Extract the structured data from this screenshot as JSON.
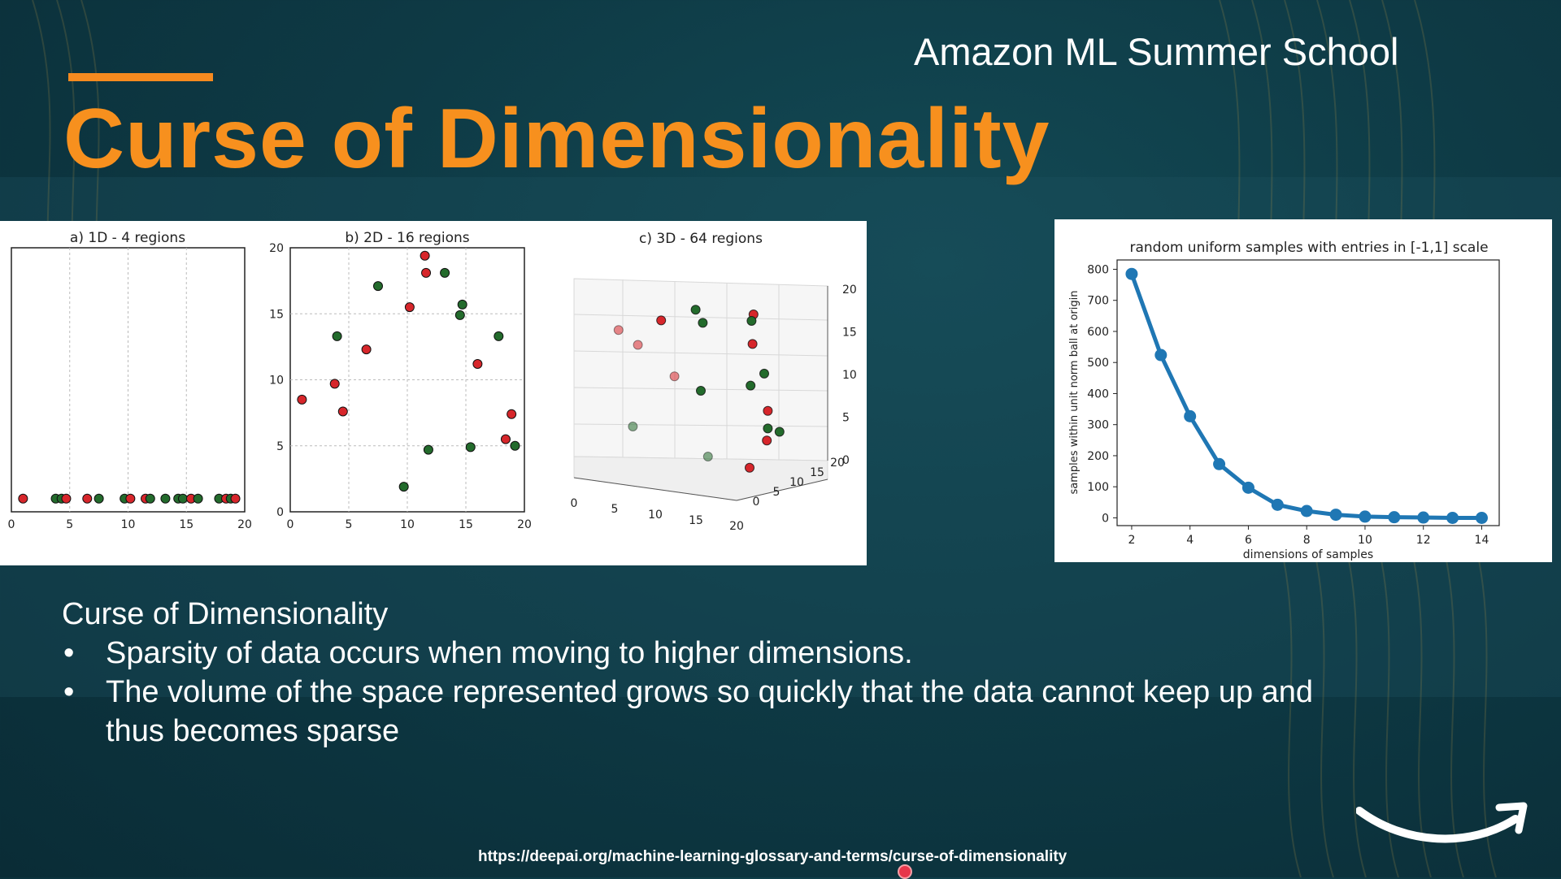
{
  "slide": {
    "brand": "Amazon ML Summer School",
    "title": "Curse of Dimensionality",
    "body_heading": "Curse of Dimensionality",
    "bullets": [
      "Sparsity of data occurs when moving to higher dimensions.",
      "The volume of the space represented grows so quickly that the data cannot keep up and thus becomes sparse"
    ],
    "bullet_symbol": "•",
    "source_url": "https://deepai.org/machine-learning-glossary-and-terms/curse-of-dimensionality",
    "logo": "amazon-smile-icon",
    "colors": {
      "title": "#f7901e",
      "accent": "#f58a1f",
      "red_point": "#d7262b",
      "green_point": "#236b2c",
      "line": "#1f77b4"
    }
  },
  "chart_data": [
    {
      "type": "scatter",
      "title": "a) 1D - 4 regions",
      "xlim": [
        0,
        20
      ],
      "ylim": [
        0,
        20
      ],
      "xticks": [
        0,
        5,
        10,
        15,
        20
      ],
      "grid": true,
      "points": [
        {
          "x": 1,
          "y": 1,
          "color": "red"
        },
        {
          "x": 3.8,
          "y": 1,
          "color": "green"
        },
        {
          "x": 4.3,
          "y": 1,
          "color": "green"
        },
        {
          "x": 4.7,
          "y": 1,
          "color": "red"
        },
        {
          "x": 6.5,
          "y": 1,
          "color": "red"
        },
        {
          "x": 7.5,
          "y": 1,
          "color": "green"
        },
        {
          "x": 9.7,
          "y": 1,
          "color": "green"
        },
        {
          "x": 10.2,
          "y": 1,
          "color": "red"
        },
        {
          "x": 11.5,
          "y": 1,
          "color": "red"
        },
        {
          "x": 11.9,
          "y": 1,
          "color": "green"
        },
        {
          "x": 13.2,
          "y": 1,
          "color": "green"
        },
        {
          "x": 14.3,
          "y": 1,
          "color": "green"
        },
        {
          "x": 14.7,
          "y": 1,
          "color": "green"
        },
        {
          "x": 15.4,
          "y": 1,
          "color": "red"
        },
        {
          "x": 16,
          "y": 1,
          "color": "green"
        },
        {
          "x": 17.8,
          "y": 1,
          "color": "green"
        },
        {
          "x": 18.4,
          "y": 1,
          "color": "red"
        },
        {
          "x": 18.8,
          "y": 1,
          "color": "green"
        },
        {
          "x": 19.2,
          "y": 1,
          "color": "red"
        }
      ]
    },
    {
      "type": "scatter",
      "title": "b) 2D - 16 regions",
      "xlim": [
        0,
        20
      ],
      "ylim": [
        0,
        20
      ],
      "xticks": [
        0,
        5,
        10,
        15,
        20
      ],
      "yticks": [
        0,
        5,
        10,
        15,
        20
      ],
      "grid": true,
      "points": [
        {
          "x": 1,
          "y": 8.5,
          "color": "red"
        },
        {
          "x": 3.8,
          "y": 9.7,
          "color": "red"
        },
        {
          "x": 4.5,
          "y": 7.6,
          "color": "red"
        },
        {
          "x": 4,
          "y": 13.3,
          "color": "green"
        },
        {
          "x": 6.5,
          "y": 12.3,
          "color": "red"
        },
        {
          "x": 7.5,
          "y": 17.1,
          "color": "green"
        },
        {
          "x": 9.7,
          "y": 1.9,
          "color": "green"
        },
        {
          "x": 10.2,
          "y": 15.5,
          "color": "red"
        },
        {
          "x": 11.5,
          "y": 19.4,
          "color": "red"
        },
        {
          "x": 11.6,
          "y": 18.1,
          "color": "red"
        },
        {
          "x": 11.8,
          "y": 4.7,
          "color": "green"
        },
        {
          "x": 13.2,
          "y": 18.1,
          "color": "green"
        },
        {
          "x": 14.5,
          "y": 14.9,
          "color": "green"
        },
        {
          "x": 14.7,
          "y": 15.7,
          "color": "green"
        },
        {
          "x": 15.4,
          "y": 4.9,
          "color": "green"
        },
        {
          "x": 16,
          "y": 11.2,
          "color": "red"
        },
        {
          "x": 17.8,
          "y": 13.3,
          "color": "green"
        },
        {
          "x": 18.4,
          "y": 5.5,
          "color": "red"
        },
        {
          "x": 18.9,
          "y": 7.4,
          "color": "red"
        },
        {
          "x": 19.2,
          "y": 5.0,
          "color": "green"
        }
      ]
    },
    {
      "type": "scatter",
      "title": "c) 3D - 64 regions",
      "xticks": [
        0,
        5,
        10,
        15,
        20
      ],
      "yticks": [
        0,
        5,
        10,
        15,
        20
      ],
      "zticks": [
        0,
        5,
        10,
        15,
        20
      ],
      "points": [
        {
          "x": 1,
          "y": 8,
          "z": 16,
          "color": "red"
        },
        {
          "x": 4,
          "y": 12,
          "z": 17,
          "color": "red"
        },
        {
          "x": 4.5,
          "y": 6,
          "z": 15,
          "color": "red"
        },
        {
          "x": 6,
          "y": 16,
          "z": 18,
          "color": "green"
        },
        {
          "x": 8,
          "y": 14,
          "z": 17,
          "color": "green"
        },
        {
          "x": 9,
          "y": 6,
          "z": 12,
          "color": "red"
        },
        {
          "x": 10,
          "y": 10,
          "z": 10,
          "color": "green"
        },
        {
          "x": 12,
          "y": 18,
          "z": 18,
          "color": "red"
        },
        {
          "x": 13,
          "y": 16,
          "z": 15,
          "color": "red"
        },
        {
          "x": 14,
          "y": 14,
          "z": 18,
          "color": "green"
        },
        {
          "x": 15,
          "y": 12,
          "z": 11,
          "color": "green"
        },
        {
          "x": 16,
          "y": 14,
          "z": 8,
          "color": "red"
        },
        {
          "x": 15,
          "y": 15,
          "z": 12,
          "color": "green"
        },
        {
          "x": 17,
          "y": 12,
          "z": 5,
          "color": "red"
        },
        {
          "x": 16,
          "y": 14,
          "z": 6,
          "color": "green"
        },
        {
          "x": 18,
          "y": 13,
          "z": 6,
          "color": "green"
        },
        {
          "x": 5,
          "y": 4,
          "z": 6,
          "color": "green"
        },
        {
          "x": 12,
          "y": 8,
          "z": 3,
          "color": "green"
        },
        {
          "x": 16,
          "y": 10,
          "z": 2,
          "color": "red"
        }
      ]
    },
    {
      "type": "line",
      "title": "random uniform samples with entries in [-1,1] scale",
      "xlabel": "dimensions of samples",
      "ylabel": "samples within unit norm ball at origin",
      "xlim": [
        1.5,
        14.6
      ],
      "ylim": [
        -25,
        830
      ],
      "xticks": [
        2,
        4,
        6,
        8,
        10,
        12,
        14
      ],
      "yticks": [
        0,
        100,
        200,
        300,
        400,
        500,
        600,
        700,
        800
      ],
      "x": [
        2,
        3,
        4,
        5,
        6,
        7,
        8,
        9,
        10,
        11,
        12,
        13,
        14
      ],
      "values": [
        785,
        524,
        327,
        173,
        97,
        42,
        22,
        10,
        4,
        2,
        1,
        0,
        0
      ]
    }
  ]
}
